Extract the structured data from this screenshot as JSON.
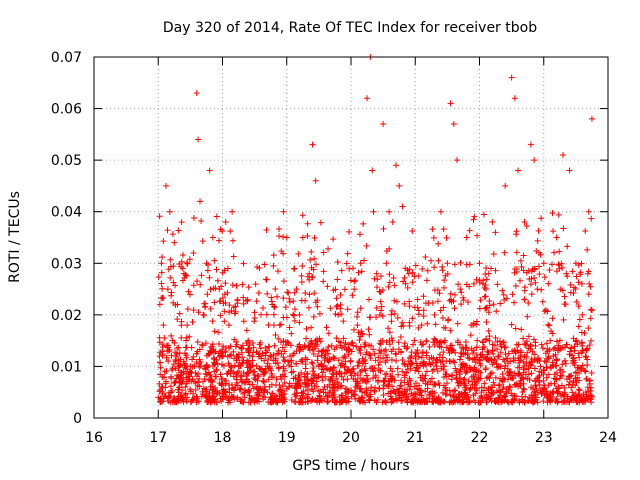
{
  "chart_data": {
    "type": "scatter",
    "title": "Day 320 of 2014, Rate Of TEC Index for receiver tbob",
    "xlabel": "GPS time / hours",
    "ylabel": "ROTI / TECUs",
    "xlim": [
      16,
      24
    ],
    "ylim": [
      0,
      0.07
    ],
    "xticks": [
      "16",
      "17",
      "18",
      "19",
      "20",
      "21",
      "22",
      "23",
      "24"
    ],
    "yticks": [
      "0",
      "0.01",
      "0.02",
      "0.03",
      "0.04",
      "0.05",
      "0.06",
      "0.07"
    ],
    "grid": true,
    "marker": "+",
    "color": "#ff0000",
    "series": [
      {
        "name": "ROTI",
        "note": "dense point cloud; representative points listed",
        "x": [
          17.0,
          17.02,
          17.05,
          17.08,
          17.1,
          17.12,
          17.15,
          17.18,
          17.2,
          17.22,
          17.25,
          17.28,
          17.3,
          17.35,
          17.4,
          17.45,
          17.5,
          17.55,
          17.6,
          17.62,
          17.65,
          17.7,
          17.75,
          17.8,
          17.85,
          17.9,
          17.95,
          18.0,
          18.05,
          18.1,
          18.15,
          18.2,
          18.25,
          18.3,
          18.4,
          18.5,
          18.6,
          18.7,
          18.8,
          18.9,
          18.95,
          19.0,
          19.05,
          19.1,
          19.15,
          19.2,
          19.25,
          19.3,
          19.35,
          19.4,
          19.45,
          19.5,
          19.6,
          19.7,
          19.8,
          19.9,
          20.0,
          20.05,
          20.1,
          20.15,
          20.2,
          20.25,
          20.3,
          20.33,
          20.35,
          20.4,
          20.45,
          20.5,
          20.55,
          20.6,
          20.65,
          20.7,
          20.75,
          20.8,
          20.9,
          21.0,
          21.1,
          21.2,
          21.3,
          21.4,
          21.5,
          21.55,
          21.6,
          21.65,
          21.7,
          21.8,
          21.9,
          22.0,
          22.1,
          22.2,
          22.3,
          22.4,
          22.5,
          22.55,
          22.6,
          22.7,
          22.8,
          22.85,
          22.9,
          23.0,
          23.1,
          23.2,
          23.3,
          23.35,
          23.4,
          23.5,
          23.6,
          23.65,
          23.7,
          23.75
        ],
        "y": [
          0.004,
          0.012,
          0.03,
          0.018,
          0.009,
          0.045,
          0.025,
          0.04,
          0.008,
          0.015,
          0.034,
          0.012,
          0.022,
          0.007,
          0.028,
          0.018,
          0.01,
          0.032,
          0.063,
          0.054,
          0.042,
          0.02,
          0.03,
          0.048,
          0.035,
          0.008,
          0.025,
          0.012,
          0.038,
          0.018,
          0.04,
          0.006,
          0.01,
          0.007,
          0.015,
          0.009,
          0.012,
          0.005,
          0.018,
          0.008,
          0.04,
          0.035,
          0.012,
          0.009,
          0.025,
          0.02,
          0.035,
          0.006,
          0.028,
          0.053,
          0.046,
          0.01,
          0.008,
          0.014,
          0.02,
          0.012,
          0.009,
          0.025,
          0.018,
          0.03,
          0.011,
          0.062,
          0.07,
          0.048,
          0.04,
          0.028,
          0.02,
          0.057,
          0.03,
          0.015,
          0.038,
          0.049,
          0.045,
          0.041,
          0.028,
          0.012,
          0.018,
          0.007,
          0.02,
          0.04,
          0.03,
          0.061,
          0.057,
          0.05,
          0.025,
          0.035,
          0.018,
          0.03,
          0.025,
          0.038,
          0.01,
          0.045,
          0.066,
          0.062,
          0.048,
          0.038,
          0.053,
          0.05,
          0.025,
          0.03,
          0.015,
          0.035,
          0.051,
          0.028,
          0.048,
          0.03,
          0.02,
          0.012,
          0.04,
          0.058
        ]
      }
    ]
  }
}
